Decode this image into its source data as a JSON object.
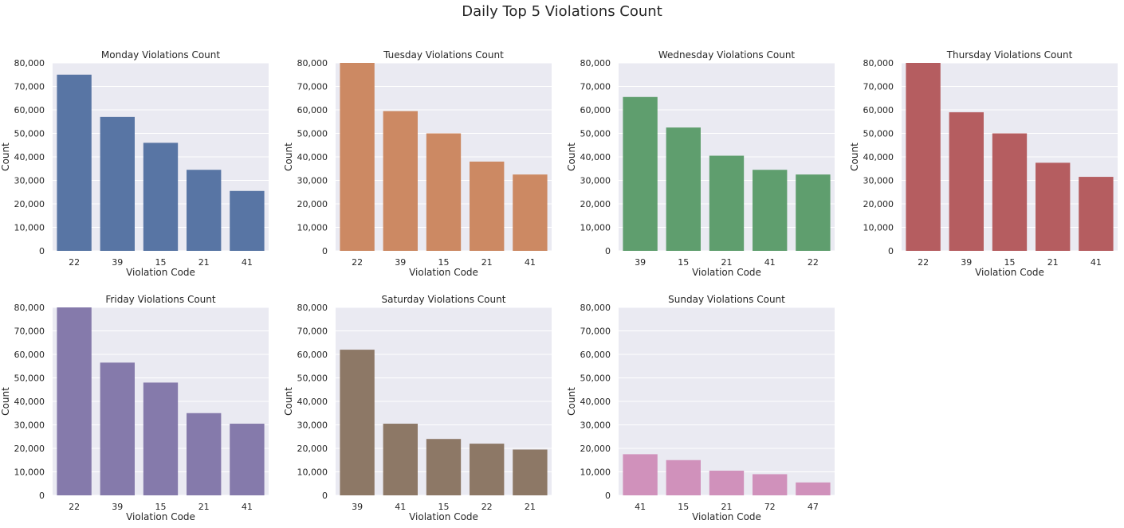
{
  "suptitle": "Daily Top 5 Violations Count",
  "chart_data": [
    {
      "type": "bar",
      "title": "Monday Violations Count",
      "xlabel": "Violation Code",
      "ylabel": "Count",
      "categories": [
        "22",
        "39",
        "15",
        "21",
        "41"
      ],
      "values": [
        75000,
        57000,
        46000,
        34500,
        25500
      ],
      "ylim": [
        0,
        80000
      ],
      "yticks": [
        "0",
        "10,000",
        "20,000",
        "30,000",
        "40,000",
        "50,000",
        "60,000",
        "70,000",
        "80,000"
      ],
      "color": "#5875a4",
      "grid": true
    },
    {
      "type": "bar",
      "title": "Tuesday Violations Count",
      "xlabel": "Violation Code",
      "ylabel": "Count",
      "categories": [
        "22",
        "39",
        "15",
        "21",
        "41"
      ],
      "values": [
        80000,
        59500,
        50000,
        38000,
        32500
      ],
      "ylim": [
        0,
        80000
      ],
      "yticks": [
        "0",
        "10,000",
        "20,000",
        "30,000",
        "40,000",
        "50,000",
        "60,000",
        "70,000",
        "80,000"
      ],
      "color": "#cc8963",
      "grid": true
    },
    {
      "type": "bar",
      "title": "Wednesday Violations Count",
      "xlabel": "Violation Code",
      "ylabel": "Count",
      "categories": [
        "39",
        "15",
        "21",
        "41",
        "22"
      ],
      "values": [
        65500,
        52500,
        40500,
        34500,
        32500
      ],
      "ylim": [
        0,
        80000
      ],
      "yticks": [
        "0",
        "10,000",
        "20,000",
        "30,000",
        "40,000",
        "50,000",
        "60,000",
        "70,000",
        "80,000"
      ],
      "color": "#5f9e6e",
      "grid": true
    },
    {
      "type": "bar",
      "title": "Thursday Violations Count",
      "xlabel": "Violation Code",
      "ylabel": "Count",
      "categories": [
        "22",
        "39",
        "15",
        "21",
        "41"
      ],
      "values": [
        80000,
        59000,
        50000,
        37500,
        31500
      ],
      "ylim": [
        0,
        80000
      ],
      "yticks": [
        "0",
        "10,000",
        "20,000",
        "30,000",
        "40,000",
        "50,000",
        "60,000",
        "70,000",
        "80,000"
      ],
      "color": "#b55d60",
      "grid": true
    },
    {
      "type": "bar",
      "title": "Friday Violations Count",
      "xlabel": "Violation Code",
      "ylabel": "Count",
      "categories": [
        "22",
        "39",
        "15",
        "21",
        "41"
      ],
      "values": [
        80000,
        56500,
        48000,
        35000,
        30500
      ],
      "ylim": [
        0,
        80000
      ],
      "yticks": [
        "0",
        "10,000",
        "20,000",
        "30,000",
        "40,000",
        "50,000",
        "60,000",
        "70,000",
        "80,000"
      ],
      "color": "#857aab",
      "grid": true
    },
    {
      "type": "bar",
      "title": "Saturday Violations Count",
      "xlabel": "Violation Code",
      "ylabel": "Count",
      "categories": [
        "39",
        "41",
        "15",
        "22",
        "21"
      ],
      "values": [
        62000,
        30500,
        24000,
        22000,
        19500
      ],
      "ylim": [
        0,
        80000
      ],
      "yticks": [
        "0",
        "10,000",
        "20,000",
        "30,000",
        "40,000",
        "50,000",
        "60,000",
        "70,000",
        "80,000"
      ],
      "color": "#8d7866",
      "grid": true
    },
    {
      "type": "bar",
      "title": "Sunday Violations Count",
      "xlabel": "Violation Code",
      "ylabel": "Count",
      "categories": [
        "41",
        "15",
        "21",
        "72",
        "47"
      ],
      "values": [
        17500,
        15000,
        10500,
        9000,
        5500
      ],
      "ylim": [
        0,
        80000
      ],
      "yticks": [
        "0",
        "10,000",
        "20,000",
        "30,000",
        "40,000",
        "50,000",
        "60,000",
        "70,000",
        "80,000"
      ],
      "color": "#d091bb",
      "grid": true
    }
  ],
  "style": {
    "axes_bg": "#eaeaf2",
    "grid_color": "#ffffff"
  }
}
